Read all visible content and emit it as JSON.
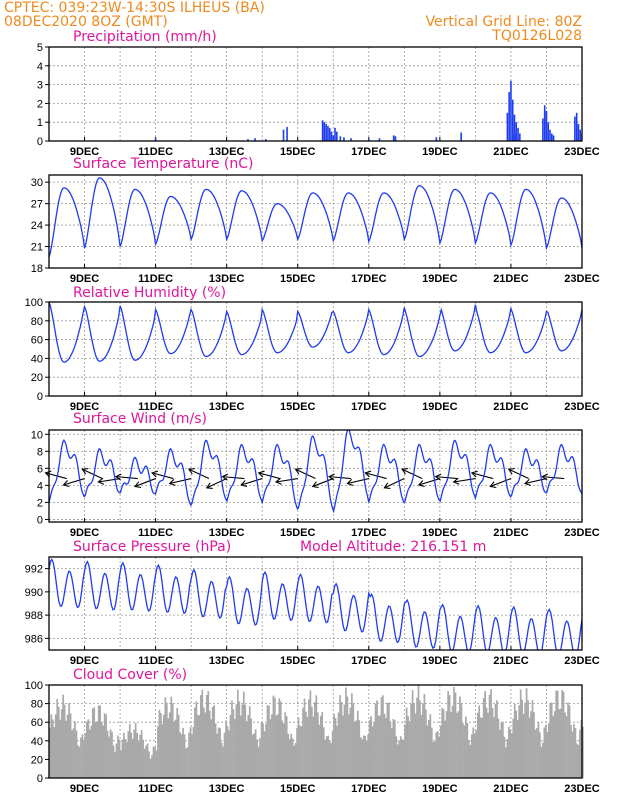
{
  "header": {
    "left_line1": "CPTEC:   039:23W-14:30S   ILHEUS (BA)",
    "left_line2": "08DEC2020  8OZ  (GMT)",
    "right_line1": "Vertical Grid Line: 80Z",
    "right_line2": "TQ0126L028"
  },
  "colors": {
    "header": "#f08a1e",
    "panel_title": "#e0169a",
    "series": "#1f3cf0",
    "cloud_fill": "#a9a9a9",
    "wind_arrow": "#000000",
    "grid": "#9a9a9a"
  },
  "x_ticks": [
    "9DEC",
    "11DEC",
    "13DEC",
    "15DEC",
    "17DEC",
    "19DEC",
    "21DEC",
    "23DEC"
  ],
  "chart_data": [
    {
      "id": "precip",
      "type": "bar",
      "title": "Precipitation (mm/h)",
      "yticks": [
        "0",
        "1",
        "2",
        "3",
        "4",
        "5"
      ],
      "ylim": [
        0,
        5
      ],
      "grid": true,
      "x_range_days": [
        0,
        15
      ],
      "values": [
        {
          "x": 3.0,
          "y": 0.15
        },
        {
          "x": 5.6,
          "y": 0.1
        },
        {
          "x": 5.8,
          "y": 0.15
        },
        {
          "x": 6.1,
          "y": 0.1
        },
        {
          "x": 6.6,
          "y": 0.6
        },
        {
          "x": 6.7,
          "y": 0.75
        },
        {
          "x": 7.7,
          "y": 1.1
        },
        {
          "x": 7.75,
          "y": 1.0
        },
        {
          "x": 7.8,
          "y": 0.9
        },
        {
          "x": 7.85,
          "y": 0.8
        },
        {
          "x": 7.9,
          "y": 0.7
        },
        {
          "x": 7.95,
          "y": 0.5
        },
        {
          "x": 8.0,
          "y": 0.3
        },
        {
          "x": 8.05,
          "y": 0.7
        },
        {
          "x": 8.1,
          "y": 0.5
        },
        {
          "x": 8.2,
          "y": 0.25
        },
        {
          "x": 8.3,
          "y": 0.2
        },
        {
          "x": 8.5,
          "y": 0.15
        },
        {
          "x": 9.0,
          "y": 0.1
        },
        {
          "x": 9.3,
          "y": 0.15
        },
        {
          "x": 9.7,
          "y": 0.3
        },
        {
          "x": 9.75,
          "y": 0.25
        },
        {
          "x": 10.9,
          "y": 0.2
        },
        {
          "x": 11.6,
          "y": 0.45
        },
        {
          "x": 13.1,
          "y": 0.35
        },
        {
          "x": 13.15,
          "y": 0.25
        },
        {
          "x": 12.9,
          "y": 1.5
        },
        {
          "x": 12.95,
          "y": 2.6
        },
        {
          "x": 13.0,
          "y": 3.2
        },
        {
          "x": 13.05,
          "y": 2.2
        },
        {
          "x": 13.1,
          "y": 1.4
        },
        {
          "x": 13.15,
          "y": 1.0
        },
        {
          "x": 13.2,
          "y": 0.7
        },
        {
          "x": 13.25,
          "y": 0.4
        },
        {
          "x": 13.9,
          "y": 1.2
        },
        {
          "x": 13.95,
          "y": 1.9
        },
        {
          "x": 14.0,
          "y": 1.6
        },
        {
          "x": 14.05,
          "y": 1.0
        },
        {
          "x": 14.1,
          "y": 0.6
        },
        {
          "x": 14.15,
          "y": 0.4
        },
        {
          "x": 14.2,
          "y": 0.3
        },
        {
          "x": 14.8,
          "y": 1.3
        },
        {
          "x": 14.85,
          "y": 1.5
        },
        {
          "x": 14.9,
          "y": 0.9
        },
        {
          "x": 14.95,
          "y": 0.6
        },
        {
          "x": 15.0,
          "y": 0.4
        }
      ]
    },
    {
      "id": "temp",
      "type": "line",
      "title": "Surface Temperature (nC)",
      "yticks": [
        "18",
        "21",
        "24",
        "27",
        "30"
      ],
      "ylim": [
        18,
        31
      ],
      "grid": true,
      "daily_peaks": [
        29.2,
        30.6,
        29.0,
        28.0,
        29.0,
        28.8,
        27.0,
        28.5,
        28.5,
        28.5,
        29.5,
        29.0,
        28.5,
        29.0,
        27.8
      ],
      "daily_lows": [
        19.5,
        20.8,
        21.0,
        21.3,
        22.0,
        22.0,
        21.8,
        22.0,
        21.8,
        21.7,
        22.0,
        21.5,
        21.5,
        21.2,
        20.8
      ]
    },
    {
      "id": "rh",
      "type": "line",
      "title": "Relative Humidity (%)",
      "yticks": [
        "0",
        "20",
        "40",
        "60",
        "80",
        "100"
      ],
      "ylim": [
        0,
        100
      ],
      "grid": true,
      "daily_lows": [
        36,
        37,
        38,
        45,
        42,
        44,
        46,
        52,
        46,
        44,
        42,
        48,
        46,
        46,
        48
      ],
      "daily_highs": [
        100,
        95,
        96,
        92,
        92,
        90,
        92,
        90,
        90,
        92,
        92,
        95,
        93,
        92,
        92
      ]
    },
    {
      "id": "wind",
      "type": "line",
      "title": "Surface Wind (m/s)",
      "yticks": [
        "0",
        "2",
        "4",
        "6",
        "8",
        "10"
      ],
      "ylim": [
        -0.3,
        10.5
      ],
      "grid": true,
      "daily_peaks": [
        8.5,
        7.5,
        6.5,
        7.5,
        8.5,
        8.0,
        8.0,
        9.0,
        9.8,
        8.0,
        8.0,
        8.5,
        8.0,
        7.5,
        8.0
      ],
      "daily_lows": [
        2.0,
        2.5,
        3.0,
        3.0,
        1.5,
        2.0,
        2.0,
        1.0,
        0.8,
        2.0,
        1.8,
        2.0,
        2.5,
        2.5,
        3.0
      ],
      "arrow_level": 4.8
    },
    {
      "id": "pres",
      "type": "line",
      "title": "Surface Pressure (hPa)",
      "subtitle": "Model Altitude: 216.151 m",
      "yticks": [
        "986",
        "988",
        "990",
        "992"
      ],
      "ylim": [
        985.0,
        993.0
      ],
      "grid": true,
      "daily_means": [
        990.5,
        990.3,
        990.2,
        990.0,
        989.6,
        989.0,
        989.4,
        989.2,
        988.4,
        987.5,
        987.0,
        986.6,
        986.5,
        986.4,
        986.2
      ],
      "amplitude": 1.8
    },
    {
      "id": "cloud",
      "type": "bar",
      "title": "Cloud Cover (%)",
      "yticks": [
        "0",
        "20",
        "40",
        "60",
        "80",
        "100"
      ],
      "ylim": [
        0,
        100
      ],
      "grid": true,
      "daily_peaks": [
        90,
        82,
        60,
        90,
        98,
        96,
        92,
        95,
        98,
        92,
        100,
        100,
        98,
        98,
        100
      ]
    }
  ]
}
